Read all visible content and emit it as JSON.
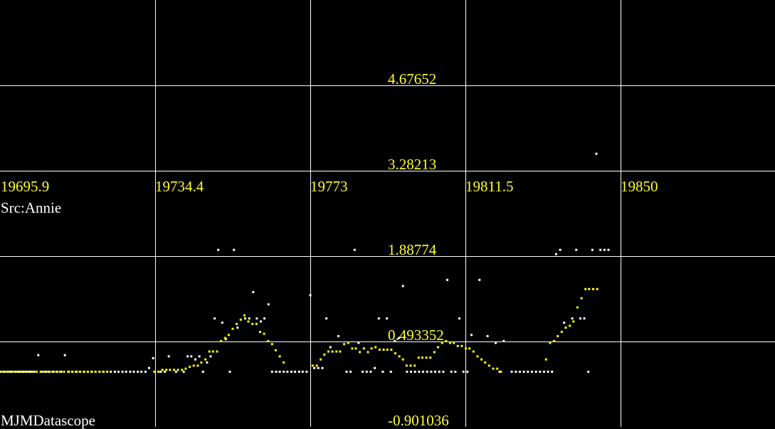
{
  "app": {
    "brand": "MJMDatascope",
    "source_label": "Src:Annie"
  },
  "colors": {
    "background": "#000000",
    "grid": "#ffffff",
    "tick_label": "#ffff33",
    "series_white": "#ffffff",
    "series_yellow": "#ffff00"
  },
  "chart_data": {
    "type": "scatter",
    "grid": true,
    "x_ticks": [
      "19695.9",
      "19734.4",
      "19773",
      "19811.5",
      "19850"
    ],
    "y_ticks": [
      "4.67652",
      "3.28213",
      "1.88774",
      "0.493352",
      "-0.901036"
    ],
    "xlim": [
      19695.9,
      19888.5
    ],
    "ylim": [
      -0.901036,
      5.97
    ],
    "series": [
      {
        "color": "white",
        "points": [
          [
            19695.9,
            -0.0
          ],
          [
            19696.8,
            -0.0
          ],
          [
            19697.8,
            -0.0
          ],
          [
            19698.7,
            -0.0
          ],
          [
            19699.7,
            -0.0
          ],
          [
            19700.6,
            -0.0
          ],
          [
            19701.6,
            -0.0
          ],
          [
            19702.5,
            -0.0
          ],
          [
            19703.5,
            -0.0
          ],
          [
            19704.4,
            -0.0
          ],
          [
            19705.4,
            0.27
          ],
          [
            19706.3,
            -0.0
          ],
          [
            19707.3,
            -0.0
          ],
          [
            19708.2,
            -0.0
          ],
          [
            19709.2,
            -0.0
          ],
          [
            19710.1,
            -0.0
          ],
          [
            19711.1,
            -0.0
          ],
          [
            19712.0,
            0.27
          ],
          [
            19713.0,
            -0.0
          ],
          [
            19713.9,
            -0.0
          ],
          [
            19714.9,
            -0.0
          ],
          [
            19715.8,
            -0.0
          ],
          [
            19716.8,
            -0.0
          ],
          [
            19717.7,
            -0.0
          ],
          [
            19718.7,
            -0.0
          ],
          [
            19719.6,
            -0.0
          ],
          [
            19720.6,
            -0.0
          ],
          [
            19721.5,
            -0.0
          ],
          [
            19722.5,
            -0.0
          ],
          [
            19723.4,
            -0.0
          ],
          [
            19724.4,
            -0.0
          ],
          [
            19725.3,
            -0.0
          ],
          [
            19726.3,
            -0.0
          ],
          [
            19727.2,
            -0.0
          ],
          [
            19728.2,
            -0.0
          ],
          [
            19729.1,
            -0.0
          ],
          [
            19730.1,
            -0.0
          ],
          [
            19731.0,
            -0.0
          ],
          [
            19732.0,
            -0.0
          ],
          [
            19732.9,
            0.06
          ],
          [
            19733.9,
            0.22
          ],
          [
            19735.8,
            -0.0
          ],
          [
            19736.8,
            -0.0
          ],
          [
            19737.8,
            0.25
          ],
          [
            19739.6,
            -0.0
          ],
          [
            19741.5,
            -0.0
          ],
          [
            19742.5,
            0.25
          ],
          [
            19743.4,
            0.25
          ],
          [
            19744.4,
            0.2
          ],
          [
            19745.4,
            0.25
          ],
          [
            19746.3,
            -0.0
          ],
          [
            19747.3,
            0.15
          ],
          [
            19748.2,
            0.25
          ],
          [
            19749.2,
            0.87
          ],
          [
            19750.1,
            1.99
          ],
          [
            19751.1,
            0.8
          ],
          [
            19752.0,
            0.53
          ],
          [
            19753.0,
            -0.0
          ],
          [
            19754.0,
            1.99
          ],
          [
            19754.9,
            0.72
          ],
          [
            19756.8,
            0.87
          ],
          [
            19757.8,
            0.87
          ],
          [
            19758.8,
            1.3
          ],
          [
            19759.7,
            0.87
          ],
          [
            19760.7,
            0.82
          ],
          [
            19761.6,
            0.87
          ],
          [
            19762.6,
            1.1
          ],
          [
            19763.5,
            -0.0
          ],
          [
            19764.5,
            -0.0
          ],
          [
            19765.4,
            -0.0
          ],
          [
            19766.4,
            -0.0
          ],
          [
            19767.3,
            -0.0
          ],
          [
            19768.3,
            -0.0
          ],
          [
            19769.2,
            -0.0
          ],
          [
            19770.2,
            -0.0
          ],
          [
            19771.1,
            -0.0
          ],
          [
            19772.1,
            -0.0
          ],
          [
            19773.0,
            1.25
          ],
          [
            19774.0,
            0.06
          ],
          [
            19775.0,
            0.06
          ],
          [
            19776.0,
            0.06
          ],
          [
            19777.0,
            0.87
          ],
          [
            19778.0,
            0.4
          ],
          [
            19780.0,
            0.58
          ],
          [
            19782.0,
            -0.0
          ],
          [
            19783.0,
            -0.0
          ],
          [
            19784.0,
            1.99
          ],
          [
            19785.0,
            0.47
          ],
          [
            19786.0,
            -0.0
          ],
          [
            19787.0,
            -0.0
          ],
          [
            19788.0,
            -0.0
          ],
          [
            19789.0,
            0.06
          ],
          [
            19790.0,
            0.87
          ],
          [
            19791.0,
            -0.0
          ],
          [
            19792.0,
            0.87
          ],
          [
            19793.0,
            -0.0
          ],
          [
            19794.0,
            0.5
          ],
          [
            19795.0,
            0.55
          ],
          [
            19796.0,
            1.4
          ],
          [
            19797.0,
            -0.0
          ],
          [
            19798.0,
            -0.0
          ],
          [
            19799.0,
            -0.0
          ],
          [
            19800.0,
            -0.0
          ],
          [
            19801.0,
            -0.0
          ],
          [
            19802.0,
            -0.0
          ],
          [
            19803.0,
            -0.0
          ],
          [
            19804.0,
            -0.0
          ],
          [
            19805.0,
            -0.0
          ],
          [
            19806.0,
            -0.0
          ],
          [
            19807.0,
            1.5
          ],
          [
            19808.0,
            -0.0
          ],
          [
            19809.0,
            -0.0
          ],
          [
            19810.0,
            0.87
          ],
          [
            19811.0,
            -0.0
          ],
          [
            19812.0,
            -0.0
          ],
          [
            19813.0,
            0.6
          ],
          [
            19815.0,
            1.5
          ],
          [
            19817.0,
            0.58
          ],
          [
            19819.0,
            0.47
          ],
          [
            19820.0,
            -0.0
          ],
          [
            19821.0,
            0.5
          ],
          [
            19823.0,
            -0.0
          ],
          [
            19824.0,
            -0.0
          ],
          [
            19825.0,
            -0.0
          ],
          [
            19826.0,
            -0.0
          ],
          [
            19827.0,
            -0.0
          ],
          [
            19828.0,
            -0.0
          ],
          [
            19829.0,
            -0.0
          ],
          [
            19830.0,
            -0.0
          ],
          [
            19831.0,
            -0.0
          ],
          [
            19832.0,
            -0.0
          ],
          [
            19833.0,
            -0.0
          ],
          [
            19834.0,
            1.92
          ],
          [
            19835.0,
            1.99
          ],
          [
            19836.0,
            0.8
          ],
          [
            19838.0,
            0.87
          ],
          [
            19839.0,
            1.99
          ],
          [
            19840.0,
            0.87
          ],
          [
            19841.0,
            0.87
          ],
          [
            19842.0,
            -0.0
          ],
          [
            19843.0,
            1.99
          ],
          [
            19844.0,
            3.56
          ],
          [
            19845.0,
            1.99
          ],
          [
            19846.0,
            1.99
          ],
          [
            19847.0,
            1.99
          ]
        ]
      },
      {
        "color": "yellow",
        "points": [
          [
            19696.2,
            -0.0
          ],
          [
            19697.2,
            -0.0
          ],
          [
            19698.2,
            -0.0
          ],
          [
            19699.1,
            -0.0
          ],
          [
            19700.1,
            -0.0
          ],
          [
            19701.1,
            -0.0
          ],
          [
            19702.1,
            -0.0
          ],
          [
            19703.0,
            -0.0
          ],
          [
            19704.0,
            -0.0
          ],
          [
            19705.0,
            -0.0
          ],
          [
            19706.0,
            -0.0
          ],
          [
            19706.9,
            -0.0
          ],
          [
            19707.9,
            -0.0
          ],
          [
            19708.9,
            -0.0
          ],
          [
            19709.9,
            -0.0
          ],
          [
            19710.8,
            -0.0
          ],
          [
            19711.8,
            -0.0
          ],
          [
            19712.8,
            -0.0
          ],
          [
            19713.8,
            -0.0
          ],
          [
            19714.7,
            -0.0
          ],
          [
            19715.7,
            -0.0
          ],
          [
            19716.7,
            -0.0
          ],
          [
            19717.7,
            -0.0
          ],
          [
            19718.6,
            -0.0
          ],
          [
            19719.6,
            -0.0
          ],
          [
            19720.6,
            -0.0
          ],
          [
            19721.6,
            -0.0
          ],
          [
            19722.5,
            -0.0
          ],
          [
            19734.2,
            -0.0
          ],
          [
            19735.2,
            -0.0
          ],
          [
            19736.2,
            0.03
          ],
          [
            19737.2,
            0.03
          ],
          [
            19738.1,
            0.03
          ],
          [
            19739.1,
            0.03
          ],
          [
            19740.1,
            0.03
          ],
          [
            19741.1,
            0.03
          ],
          [
            19742.0,
            0.05
          ],
          [
            19743.0,
            0.08
          ],
          [
            19744.0,
            0.1
          ],
          [
            19745.0,
            0.1
          ],
          [
            19745.9,
            0.15
          ],
          [
            19746.9,
            0.2
          ],
          [
            19747.9,
            0.33
          ],
          [
            19748.8,
            0.33
          ],
          [
            19749.8,
            0.33
          ],
          [
            19750.8,
            0.5
          ],
          [
            19751.8,
            0.55
          ],
          [
            19752.7,
            0.6
          ],
          [
            19753.7,
            0.7
          ],
          [
            19754.7,
            0.78
          ],
          [
            19755.7,
            0.85
          ],
          [
            19756.6,
            0.92
          ],
          [
            19757.6,
            0.82
          ],
          [
            19758.6,
            0.78
          ],
          [
            19759.6,
            0.78
          ],
          [
            19760.5,
            0.65
          ],
          [
            19761.5,
            0.62
          ],
          [
            19762.5,
            0.5
          ],
          [
            19763.5,
            0.45
          ],
          [
            19764.4,
            0.35
          ],
          [
            19765.4,
            0.25
          ],
          [
            19766.4,
            0.15
          ],
          [
            19773.6,
            0.1
          ],
          [
            19774.6,
            0.1
          ],
          [
            19775.6,
            0.2
          ],
          [
            19776.5,
            0.28
          ],
          [
            19777.5,
            0.33
          ],
          [
            19778.5,
            0.33
          ],
          [
            19779.5,
            0.33
          ],
          [
            19780.4,
            0.33
          ],
          [
            19781.4,
            0.45
          ],
          [
            19782.4,
            0.47
          ],
          [
            19783.4,
            0.38
          ],
          [
            19784.3,
            0.38
          ],
          [
            19785.3,
            0.32
          ],
          [
            19786.3,
            0.38
          ],
          [
            19787.3,
            0.32
          ],
          [
            19788.2,
            0.38
          ],
          [
            19789.2,
            0.4
          ],
          [
            19790.2,
            0.36
          ],
          [
            19791.2,
            0.36
          ],
          [
            19792.1,
            0.36
          ],
          [
            19793.1,
            0.36
          ],
          [
            19794.1,
            0.3
          ],
          [
            19795.1,
            0.25
          ],
          [
            19796.0,
            0.2
          ],
          [
            19796.9,
            0.1
          ],
          [
            19797.9,
            0.1
          ],
          [
            19798.9,
            0.1
          ],
          [
            19799.9,
            0.23
          ],
          [
            19800.8,
            0.23
          ],
          [
            19801.8,
            0.23
          ],
          [
            19802.8,
            0.23
          ],
          [
            19803.8,
            0.32
          ],
          [
            19804.7,
            0.4
          ],
          [
            19805.7,
            0.47
          ],
          [
            19806.7,
            0.5
          ],
          [
            19807.7,
            0.47
          ],
          [
            19808.6,
            0.47
          ],
          [
            19809.6,
            0.42
          ],
          [
            19810.6,
            0.42
          ],
          [
            19811.6,
            0.38
          ],
          [
            19812.5,
            0.38
          ],
          [
            19813.5,
            0.33
          ],
          [
            19814.5,
            0.25
          ],
          [
            19815.5,
            0.2
          ],
          [
            19816.4,
            0.15
          ],
          [
            19817.4,
            0.1
          ],
          [
            19818.4,
            0.05
          ],
          [
            19819.4,
            0.05
          ],
          [
            19820.3,
            0.0
          ],
          [
            19831.5,
            0.2
          ],
          [
            19832.5,
            0.47
          ],
          [
            19833.5,
            0.5
          ],
          [
            19834.4,
            0.58
          ],
          [
            19835.4,
            0.65
          ],
          [
            19836.4,
            0.72
          ],
          [
            19837.4,
            0.75
          ],
          [
            19838.3,
            0.82
          ],
          [
            19839.3,
            1.05
          ],
          [
            19840.3,
            1.2
          ],
          [
            19841.3,
            1.35
          ],
          [
            19842.2,
            1.35
          ],
          [
            19843.2,
            1.35
          ],
          [
            19844.2,
            1.35
          ]
        ]
      }
    ]
  }
}
